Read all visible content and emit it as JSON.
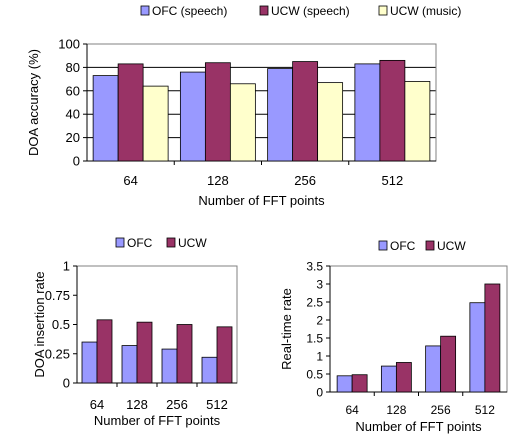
{
  "chart_data": [
    {
      "type": "bar",
      "categories": [
        "64",
        "128",
        "256",
        "512"
      ],
      "xlabel": "Number of FFT points",
      "ylabel": "DOA accuracy (%)",
      "ylim": [
        0,
        100
      ],
      "yticks": [
        "0",
        "20",
        "40",
        "60",
        "80",
        "100"
      ],
      "grid": true,
      "legend_position": "top",
      "series": [
        {
          "name": "OFC (speech)",
          "values": [
            73,
            76,
            79,
            83
          ],
          "color": "#9999ff"
        },
        {
          "name": "UCW (speech)",
          "values": [
            83,
            84,
            85,
            86
          ],
          "color": "#993366"
        },
        {
          "name": "UCW (music)",
          "values": [
            64,
            66,
            67,
            68
          ],
          "color": "#ffffcc"
        }
      ]
    },
    {
      "type": "bar",
      "categories": [
        "64",
        "128",
        "256",
        "512"
      ],
      "xlabel": "Number of FFT points",
      "ylabel": "DOA  insertion rate",
      "ylim": [
        0,
        1
      ],
      "yticks": [
        "0",
        "0.25",
        "0.5",
        "0.75",
        "1"
      ],
      "grid": false,
      "legend_position": "top",
      "series": [
        {
          "name": "OFC",
          "values": [
            0.35,
            0.32,
            0.29,
            0.22
          ],
          "color": "#9999ff"
        },
        {
          "name": "UCW",
          "values": [
            0.54,
            0.52,
            0.5,
            0.48
          ],
          "color": "#993366"
        }
      ]
    },
    {
      "type": "bar",
      "categories": [
        "64",
        "128",
        "256",
        "512"
      ],
      "xlabel": "Number of FFT points",
      "ylabel": "Real-time rate",
      "ylim": [
        0,
        3.5
      ],
      "yticks": [
        "0",
        "0.5",
        "1",
        "1.5",
        "2",
        "2.5",
        "3",
        "3.5"
      ],
      "grid": false,
      "legend_position": "top",
      "series": [
        {
          "name": "OFC",
          "values": [
            0.45,
            0.72,
            1.28,
            2.48
          ],
          "color": "#9999ff"
        },
        {
          "name": "UCW",
          "values": [
            0.48,
            0.82,
            1.55,
            3.0
          ],
          "color": "#993366"
        }
      ]
    }
  ]
}
